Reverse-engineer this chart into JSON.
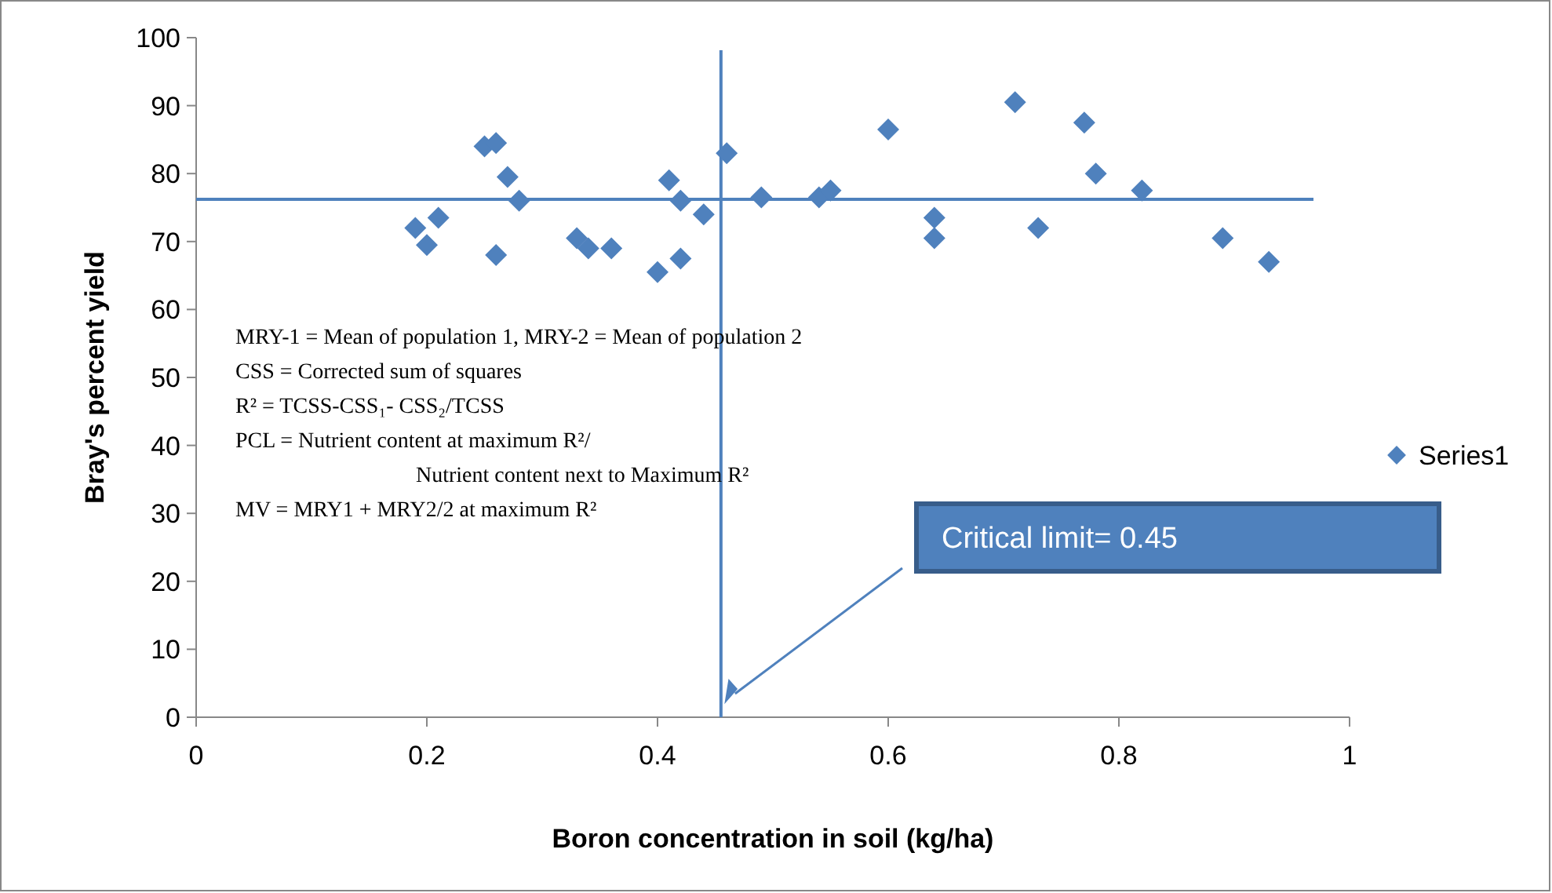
{
  "chart_data": {
    "type": "scatter",
    "xlabel": "Boron concentration in soil (kg/ha)",
    "ylabel": "Bray's percent yield",
    "series": [
      {
        "name": "Series1",
        "color": "#4f81bd",
        "x": [
          0.19,
          0.2,
          0.21,
          0.25,
          0.26,
          0.26,
          0.27,
          0.28,
          0.33,
          0.34,
          0.36,
          0.4,
          0.41,
          0.42,
          0.42,
          0.44,
          0.46,
          0.49,
          0.54,
          0.55,
          0.6,
          0.64,
          0.64,
          0.71,
          0.73,
          0.77,
          0.78,
          0.82,
          0.89,
          0.93
        ],
        "values": [
          72,
          69.5,
          73.5,
          84,
          84.5,
          68,
          79.5,
          76,
          70.5,
          69,
          69,
          65.5,
          79,
          76,
          67.5,
          74,
          83,
          76.5,
          76.5,
          77.5,
          86.5,
          73.5,
          70.5,
          90.5,
          72,
          87.5,
          80,
          77.5,
          70.5,
          67
        ]
      }
    ],
    "xlim": [
      0,
      1
    ],
    "ylim": [
      0,
      100
    ],
    "xticks": [
      0,
      0.2,
      0.4,
      0.6,
      0.8,
      1
    ],
    "yticks": [
      0,
      10,
      20,
      30,
      40,
      50,
      60,
      70,
      80,
      90,
      100
    ],
    "ref_lines": [
      {
        "axis": "x",
        "value": 0.455,
        "color": "#4f81bd"
      },
      {
        "axis": "y",
        "value": 76.2,
        "color": "#4f81bd"
      }
    ],
    "annotations": [
      "MRY-1 = Mean of population 1, MRY-2 = Mean of population 2",
      "CSS = Corrected sum of squares",
      "R² = TCSS-CSS₁- CSS₂/TCSS",
      "PCL = Nutrient content at maximum  R²/",
      "Nutrient content next to Maximum R²",
      "MV = MRY1 + MRY2/2 at maximum R²",
      "Critical limit= 0.45"
    ],
    "marker": "diamond",
    "legend": "right",
    "grid": false
  }
}
